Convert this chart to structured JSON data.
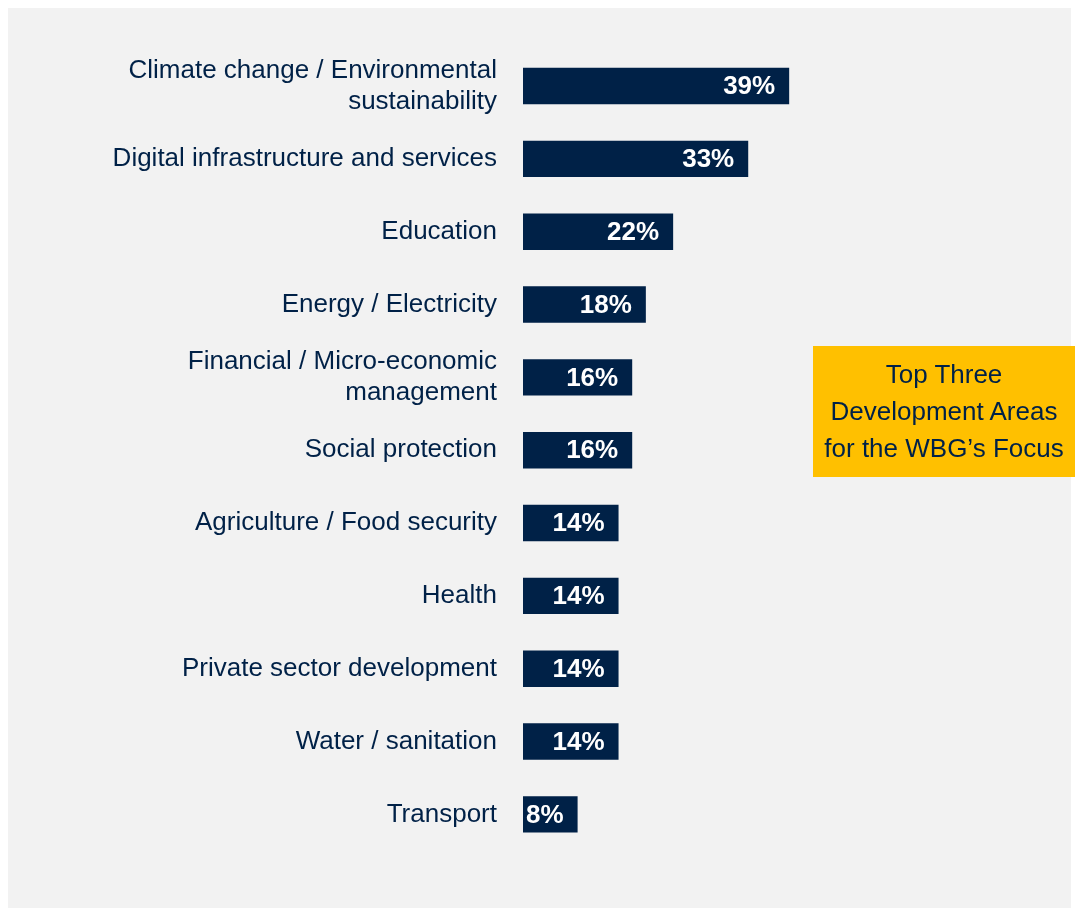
{
  "chart_data": {
    "type": "bar",
    "orientation": "horizontal",
    "categories": [
      "Climate change / Environmental sustainability",
      "Digital infrastructure and services",
      "Education",
      "Energy / Electricity",
      "Financial / Micro-economic management",
      "Social protection",
      "Agriculture / Food security",
      "Health",
      "Private sector development",
      "Water / sanitation",
      "Transport"
    ],
    "values": [
      39,
      33,
      22,
      18,
      16,
      16,
      14,
      14,
      14,
      14,
      8
    ],
    "value_labels": [
      "39%",
      "33%",
      "22%",
      "18%",
      "16%",
      "16%",
      "14%",
      "14%",
      "14%",
      "14%",
      "8%"
    ],
    "color": "#002147",
    "annotations": [
      "Top Three Development Areas for the WBG’s Focus"
    ],
    "grid": false,
    "legend": false
  }
}
